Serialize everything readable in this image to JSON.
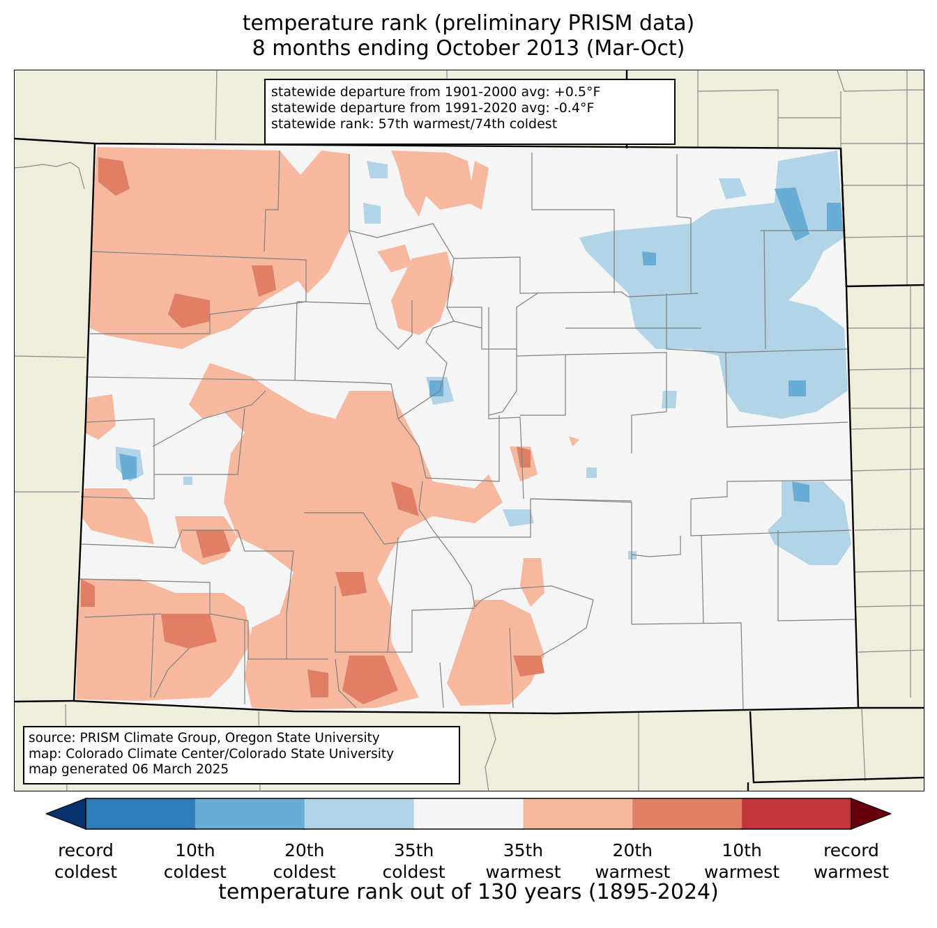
{
  "title": {
    "line1": "temperature rank (preliminary PRISM data)",
    "line2": "8 months ending October 2013 (Mar-Oct)"
  },
  "stats": {
    "line1": "statewide departure from 1901-2000 avg: +0.5°F",
    "line2": "statewide departure from 1991-2020 avg: -0.4°F",
    "line3": "statewide rank: 57th warmest/74th coldest"
  },
  "source": {
    "line1": "source: PRISM Climate Group, Oregon State University",
    "line2": "map: Colorado Climate Center/Colorado State University",
    "line3": "map generated 06 March 2025"
  },
  "colorbar": {
    "xlabel": "temperature rank out of 130 years (1895-2024)",
    "colors": [
      "#08306b",
      "#2f7db9",
      "#6aadd4",
      "#b1d4e7",
      "#f5f5f5",
      "#f7b8a0",
      "#e07f66",
      "#c1363a",
      "#67000d"
    ],
    "ticks": [
      {
        "line1": "record",
        "line2": "coldest"
      },
      {
        "line1": "10th",
        "line2": "coldest"
      },
      {
        "line1": "20th",
        "line2": "coldest"
      },
      {
        "line1": "35th",
        "line2": "coldest"
      },
      {
        "line1": "35th",
        "line2": "warmest"
      },
      {
        "line1": "20th",
        "line2": "warmest"
      },
      {
        "line1": "10th",
        "line2": "warmest"
      },
      {
        "line1": "record",
        "line2": "warmest"
      }
    ]
  },
  "map": {
    "land_color": "#efeddb",
    "neutral_color": "#f5f5f5",
    "warm_35_color": "#f7b8a0",
    "warm_20_color": "#e07f66",
    "warm_10_color": "#c1363a",
    "cool_35_color": "#b1d4e7",
    "cool_20_color": "#6aadd4",
    "cool_10_color": "#2f7db9"
  }
}
